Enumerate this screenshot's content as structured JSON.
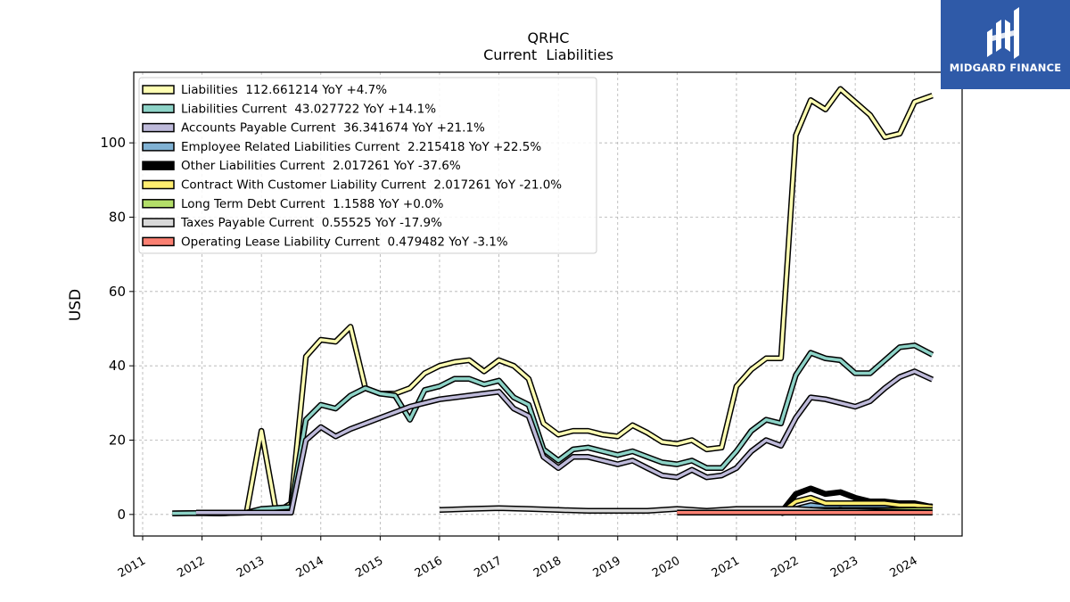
{
  "brand": {
    "name": "MIDGARD FINANCE",
    "logo_icon": "midgard-logo-icon",
    "bg_color": "#2f5aa8"
  },
  "chart_data": {
    "type": "line",
    "title": "QRHC",
    "subtitle": "Current  Liabilities",
    "xlabel": "",
    "ylabel": "USD",
    "xlim": [
      2010.85,
      2024.8
    ],
    "ylim": [
      -5.8,
      119
    ],
    "x_ticks": [
      2011,
      2012,
      2013,
      2014,
      2015,
      2016,
      2017,
      2018,
      2019,
      2020,
      2021,
      2022,
      2023,
      2024
    ],
    "x_tick_labels": [
      "2011",
      "2012",
      "2013",
      "2014",
      "2015",
      "2016",
      "2017",
      "2018",
      "2019",
      "2020",
      "2021",
      "2022",
      "2023",
      "2024"
    ],
    "y_ticks": [
      0,
      20,
      40,
      60,
      80,
      100
    ],
    "y_tick_labels": [
      "0",
      "20",
      "40",
      "60",
      "80",
      "100"
    ],
    "grid": true,
    "legend_position": "top-left",
    "series": [
      {
        "name": "Liabilities  112.661214 YoY +4.7%",
        "color": "#ffffb3",
        "points": [
          [
            2011.5,
            0.3
          ],
          [
            2011.9,
            0.4
          ],
          [
            2012.3,
            0.3
          ],
          [
            2012.75,
            0.5
          ],
          [
            2013.0,
            22.5
          ],
          [
            2013.25,
            0.5
          ],
          [
            2013.5,
            3
          ],
          [
            2013.75,
            42.5
          ],
          [
            2014.0,
            47
          ],
          [
            2014.25,
            46.5
          ],
          [
            2014.5,
            50.5
          ],
          [
            2014.75,
            34
          ],
          [
            2015.0,
            32.5
          ],
          [
            2015.25,
            32.5
          ],
          [
            2015.5,
            34
          ],
          [
            2015.75,
            38
          ],
          [
            2016.0,
            40
          ],
          [
            2016.25,
            41
          ],
          [
            2016.5,
            41.5
          ],
          [
            2016.75,
            38.5
          ],
          [
            2017.0,
            41.5
          ],
          [
            2017.25,
            40
          ],
          [
            2017.5,
            36.5
          ],
          [
            2017.75,
            24.5
          ],
          [
            2018.0,
            21.5
          ],
          [
            2018.25,
            22.5
          ],
          [
            2018.5,
            22.5
          ],
          [
            2018.75,
            21.5
          ],
          [
            2019.0,
            21
          ],
          [
            2019.25,
            24
          ],
          [
            2019.5,
            22
          ],
          [
            2019.75,
            19.5
          ],
          [
            2020.0,
            19
          ],
          [
            2020.25,
            20
          ],
          [
            2020.5,
            17.5
          ],
          [
            2020.75,
            18
          ],
          [
            2021.0,
            34.5
          ],
          [
            2021.25,
            39
          ],
          [
            2021.5,
            42
          ],
          [
            2021.75,
            42
          ],
          [
            2022.0,
            102
          ],
          [
            2022.25,
            111.5
          ],
          [
            2022.5,
            109
          ],
          [
            2022.75,
            114.5
          ],
          [
            2023.0,
            111
          ],
          [
            2023.25,
            107.5
          ],
          [
            2023.5,
            101.5
          ],
          [
            2023.75,
            102.5
          ],
          [
            2024.0,
            111
          ],
          [
            2024.3,
            112.7
          ]
        ]
      },
      {
        "name": "Liabilities Current  43.027722 YoY +14.1%",
        "color": "#8dd3c7",
        "points": [
          [
            2011.5,
            0.3
          ],
          [
            2011.9,
            0.4
          ],
          [
            2012.3,
            0.3
          ],
          [
            2012.75,
            0.5
          ],
          [
            2013.0,
            1.5
          ],
          [
            2013.5,
            2
          ],
          [
            2013.75,
            25.5
          ],
          [
            2014.0,
            29.5
          ],
          [
            2014.25,
            28.5
          ],
          [
            2014.5,
            32
          ],
          [
            2014.75,
            34
          ],
          [
            2015.0,
            32.5
          ],
          [
            2015.25,
            32
          ],
          [
            2015.5,
            25.5
          ],
          [
            2015.75,
            33.5
          ],
          [
            2016.0,
            34.5
          ],
          [
            2016.25,
            36.5
          ],
          [
            2016.5,
            36.5
          ],
          [
            2016.75,
            35
          ],
          [
            2017.0,
            36
          ],
          [
            2017.25,
            31.5
          ],
          [
            2017.5,
            29.5
          ],
          [
            2017.75,
            17.5
          ],
          [
            2018.0,
            14.5
          ],
          [
            2018.25,
            17.5
          ],
          [
            2018.5,
            18
          ],
          [
            2018.75,
            17
          ],
          [
            2019.0,
            16
          ],
          [
            2019.25,
            17
          ],
          [
            2019.5,
            15.5
          ],
          [
            2019.75,
            14
          ],
          [
            2020.0,
            13.5
          ],
          [
            2020.25,
            14.5
          ],
          [
            2020.5,
            12.5
          ],
          [
            2020.75,
            12.5
          ],
          [
            2021.0,
            17
          ],
          [
            2021.25,
            22.5
          ],
          [
            2021.5,
            25.5
          ],
          [
            2021.75,
            24.5
          ],
          [
            2022.0,
            37.5
          ],
          [
            2022.25,
            43.5
          ],
          [
            2022.5,
            42
          ],
          [
            2022.75,
            41.5
          ],
          [
            2023.0,
            38
          ],
          [
            2023.25,
            38
          ],
          [
            2023.5,
            41.5
          ],
          [
            2023.75,
            45
          ],
          [
            2024.0,
            45.5
          ],
          [
            2024.3,
            43
          ]
        ]
      },
      {
        "name": "Accounts Payable Current  36.341674 YoY +21.1%",
        "color": "#bebada",
        "points": [
          [
            2011.9,
            0.5
          ],
          [
            2012.3,
            0.5
          ],
          [
            2012.75,
            0.5
          ],
          [
            2013.0,
            0.5
          ],
          [
            2013.5,
            0.5
          ],
          [
            2013.75,
            20
          ],
          [
            2014.0,
            23.5
          ],
          [
            2014.25,
            21
          ],
          [
            2014.5,
            23
          ],
          [
            2014.75,
            24.5
          ],
          [
            2015.0,
            26
          ],
          [
            2015.25,
            27.5
          ],
          [
            2015.5,
            29
          ],
          [
            2015.75,
            30
          ],
          [
            2016.0,
            31
          ],
          [
            2016.25,
            31.5
          ],
          [
            2016.5,
            32
          ],
          [
            2016.75,
            32.5
          ],
          [
            2017.0,
            33
          ],
          [
            2017.25,
            28.5
          ],
          [
            2017.5,
            26.5
          ],
          [
            2017.75,
            15.5
          ],
          [
            2018.0,
            12.5
          ],
          [
            2018.25,
            15.5
          ],
          [
            2018.5,
            15.5
          ],
          [
            2018.75,
            14.5
          ],
          [
            2019.0,
            13.5
          ],
          [
            2019.25,
            14.5
          ],
          [
            2019.5,
            12.5
          ],
          [
            2019.75,
            10.5
          ],
          [
            2020.0,
            10
          ],
          [
            2020.25,
            12
          ],
          [
            2020.5,
            10
          ],
          [
            2020.75,
            10.5
          ],
          [
            2021.0,
            12.5
          ],
          [
            2021.25,
            17
          ],
          [
            2021.5,
            20
          ],
          [
            2021.75,
            18.5
          ],
          [
            2022.0,
            26
          ],
          [
            2022.25,
            31.5
          ],
          [
            2022.5,
            31
          ],
          [
            2022.75,
            30
          ],
          [
            2023.0,
            29
          ],
          [
            2023.25,
            30.5
          ],
          [
            2023.5,
            34
          ],
          [
            2023.75,
            37
          ],
          [
            2024.0,
            38.5
          ],
          [
            2024.3,
            36.3
          ]
        ]
      },
      {
        "name": "Employee Related Liabilities Current  2.215418 YoY +22.5%",
        "color": "#80b1d3",
        "points": [
          [
            2021.75,
            1
          ],
          [
            2022.0,
            1.5
          ],
          [
            2022.25,
            2.5
          ],
          [
            2022.5,
            2
          ],
          [
            2022.75,
            2.5
          ],
          [
            2023.0,
            2
          ],
          [
            2023.25,
            2
          ],
          [
            2023.5,
            2
          ],
          [
            2023.75,
            2
          ],
          [
            2024.0,
            2
          ],
          [
            2024.3,
            2.2
          ]
        ]
      },
      {
        "name": "Other Liabilities Current  2.017261 YoY -37.6%",
        "color": "#000000",
        "points": [
          [
            2021.75,
            0.5
          ],
          [
            2022.0,
            5.5
          ],
          [
            2022.25,
            7
          ],
          [
            2022.5,
            5.5
          ],
          [
            2022.75,
            6
          ],
          [
            2023.0,
            4.5
          ],
          [
            2023.25,
            3.5
          ],
          [
            2023.5,
            3.5
          ],
          [
            2023.75,
            3
          ],
          [
            2024.0,
            3
          ],
          [
            2024.3,
            2
          ]
        ]
      },
      {
        "name": "Contract With Customer Liability Current  2.017261 YoY -21.0%",
        "color": "#ffed6f",
        "points": [
          [
            2021.75,
            0.5
          ],
          [
            2022.0,
            3.5
          ],
          [
            2022.25,
            4.5
          ],
          [
            2022.5,
            3
          ],
          [
            2022.75,
            3
          ],
          [
            2023.0,
            3
          ],
          [
            2023.25,
            3
          ],
          [
            2023.5,
            3
          ],
          [
            2023.75,
            2.5
          ],
          [
            2024.0,
            2.5
          ],
          [
            2024.3,
            2
          ]
        ]
      },
      {
        "name": "Long Term Debt Current  1.1588 YoY +0.0%",
        "color": "#b3de69",
        "points": [
          [
            2021.75,
            0.3
          ],
          [
            2022.0,
            1.2
          ],
          [
            2022.5,
            1.2
          ],
          [
            2023.0,
            1.2
          ],
          [
            2023.5,
            1.2
          ],
          [
            2024.0,
            1.2
          ],
          [
            2024.3,
            1.2
          ]
        ]
      },
      {
        "name": "Taxes Payable Current  0.55525 YoY -17.9%",
        "color": "#d9d9d9",
        "points": [
          [
            2016.0,
            1.2
          ],
          [
            2016.5,
            1.5
          ],
          [
            2017.0,
            1.7
          ],
          [
            2017.5,
            1.5
          ],
          [
            2018.0,
            1.2
          ],
          [
            2018.5,
            1
          ],
          [
            2019.0,
            1
          ],
          [
            2019.5,
            1
          ],
          [
            2020.0,
            1.5
          ],
          [
            2020.5,
            1
          ],
          [
            2021.0,
            1.5
          ],
          [
            2021.5,
            1.5
          ],
          [
            2022.0,
            1.5
          ],
          [
            2022.5,
            1
          ],
          [
            2023.0,
            1
          ],
          [
            2023.5,
            0.8
          ],
          [
            2024.0,
            0.6
          ],
          [
            2024.3,
            0.56
          ]
        ]
      },
      {
        "name": "Operating Lease Liability Current  0.479482 YoY -3.1%",
        "color": "#fb8072",
        "points": [
          [
            2020.0,
            0.5
          ],
          [
            2020.5,
            0.5
          ],
          [
            2021.0,
            0.5
          ],
          [
            2021.5,
            0.5
          ],
          [
            2022.0,
            0.5
          ],
          [
            2022.5,
            0.5
          ],
          [
            2023.0,
            0.5
          ],
          [
            2023.5,
            0.5
          ],
          [
            2024.0,
            0.5
          ],
          [
            2024.3,
            0.48
          ]
        ]
      }
    ]
  }
}
